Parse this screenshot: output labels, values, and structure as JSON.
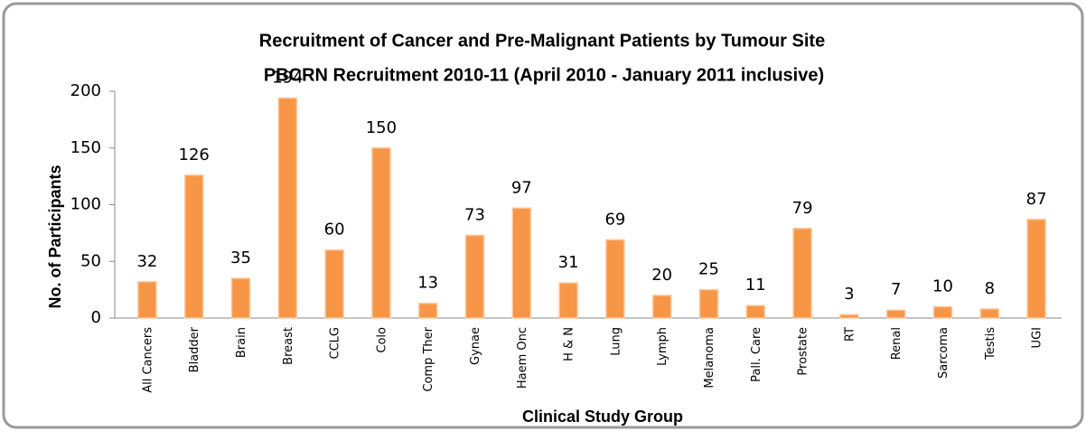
{
  "chart_data": {
    "type": "bar",
    "title": "Recruitment of Cancer and Pre-Malignant Patients by Tumour Site",
    "subtitle": "PBCRN Recruitment 2010-11   (April 2010 - January  2011 inclusive)",
    "x_label": "Clinical Study Group",
    "y_label": "No. of Participants",
    "categories": [
      "All Cancers",
      "Bladder",
      "Brain",
      "Breast",
      "CCLG",
      "Colo",
      "Comp Ther",
      "Gynae",
      "Haem Onc",
      "H & N",
      "Lung",
      "Lymph",
      "Melanoma",
      "Pall. Care",
      "Prostate",
      "RT",
      "Renal",
      "Sarcoma",
      "Testis",
      "UGI"
    ],
    "values": [
      32,
      126,
      35,
      194,
      60,
      150,
      13,
      73,
      97,
      31,
      69,
      20,
      25,
      11,
      79,
      3,
      7,
      10,
      8,
      87
    ],
    "color": "#f79646",
    "ylim": [
      0,
      200
    ],
    "yticks": [
      0,
      50,
      100,
      150,
      200
    ],
    "grid": false
  }
}
